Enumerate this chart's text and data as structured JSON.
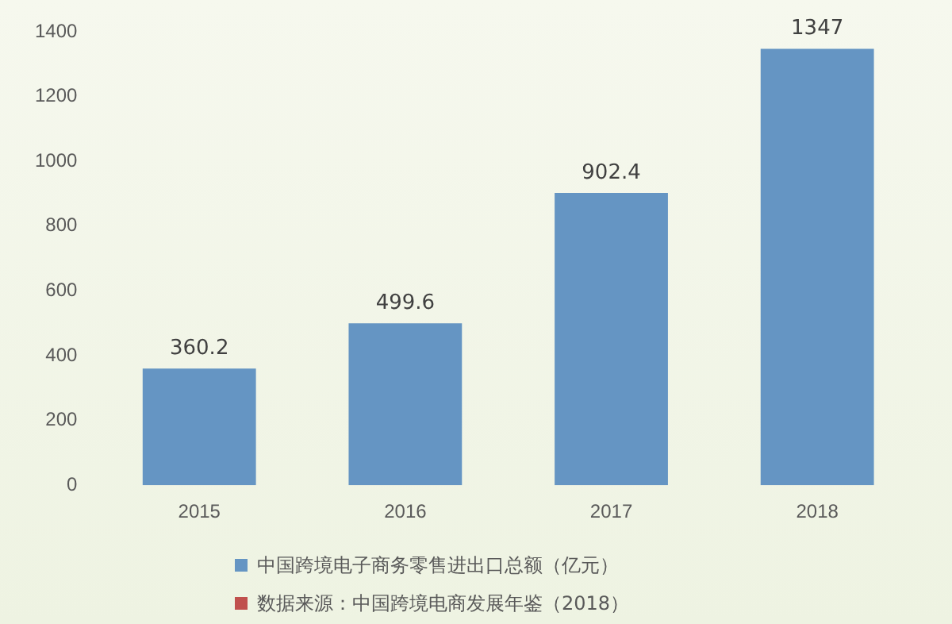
{
  "chart_data": {
    "type": "bar",
    "categories": [
      "2015",
      "2016",
      "2017",
      "2018"
    ],
    "series": [
      {
        "name": "中国跨境电子商务零售进出口总额（亿元）",
        "color": "#6595c3",
        "values": [
          360.2,
          499.6,
          902.4,
          1347
        ]
      },
      {
        "name": "数据来源：中国跨境电商发展年鉴（2018）",
        "color": "#c0504d",
        "values": [
          null,
          null,
          null,
          null
        ]
      }
    ],
    "ylim": [
      0,
      1400
    ],
    "yticks": [
      0,
      200,
      400,
      600,
      800,
      1000,
      1200,
      1400
    ],
    "grid": false,
    "legend": "bottom",
    "data_labels": true
  }
}
